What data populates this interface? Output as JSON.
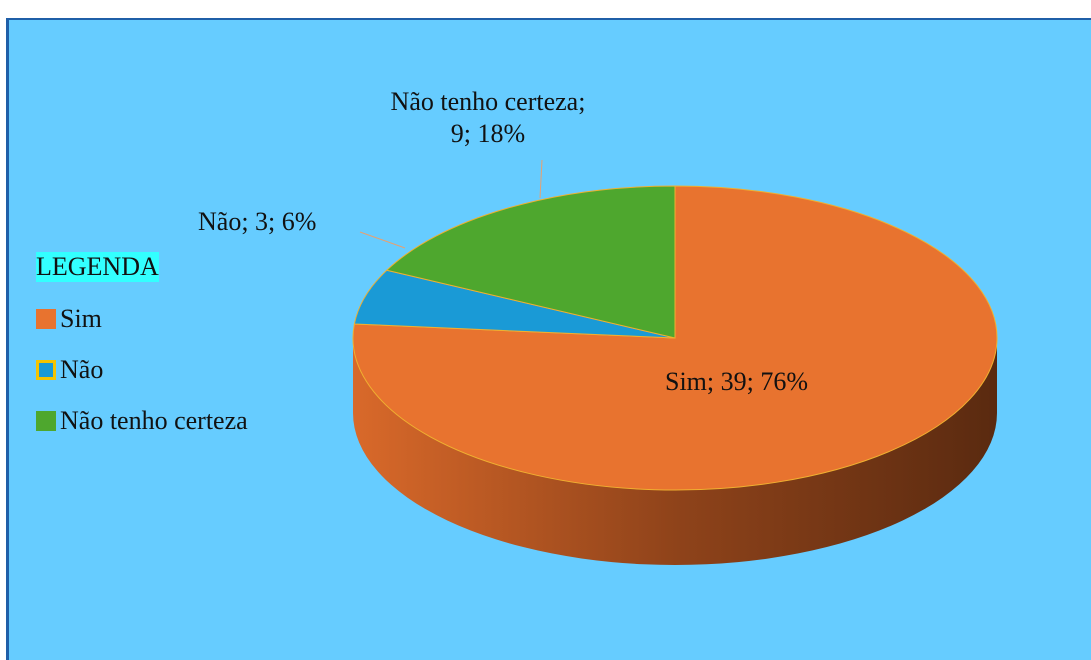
{
  "chart_data": {
    "type": "pie",
    "legend_title": "LEGENDA",
    "legend": "left",
    "categories": [
      "Sim",
      "Não",
      "Não tenho certeza"
    ],
    "values": [
      39,
      3,
      9
    ],
    "value_labels": [
      "Sim; 39; 76%",
      "Não; 3; 6%",
      "Não tenho certeza; 9; 18%"
    ],
    "colors": [
      "#e8732f",
      "#1a9ad6",
      "#4ea72e"
    ]
  }
}
